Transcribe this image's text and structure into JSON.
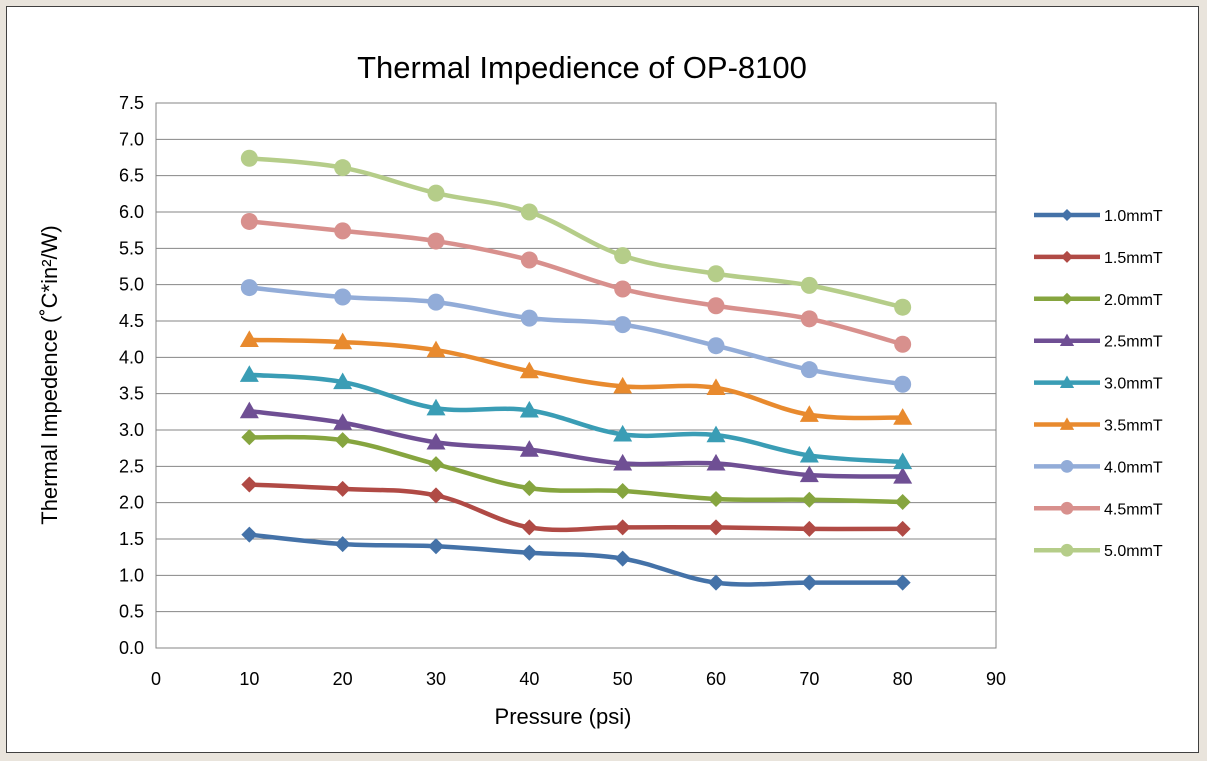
{
  "chart_data": {
    "type": "line",
    "title": "Thermal Impedience of OP-8100",
    "xlabel": "Pressure (psi)",
    "ylabel": "Thermal Impedence (˚C*in²/W)",
    "xlim": [
      0,
      90
    ],
    "ylim": [
      0,
      7.5
    ],
    "x_ticks": [
      "0",
      "10",
      "20",
      "30",
      "40",
      "50",
      "60",
      "70",
      "80",
      "90"
    ],
    "y_ticks": [
      "0.0",
      "0.5",
      "1.0",
      "1.5",
      "2.0",
      "2.5",
      "3.0",
      "3.5",
      "4.0",
      "4.5",
      "5.0",
      "5.5",
      "6.0",
      "6.5",
      "7.0",
      "7.5"
    ],
    "grid": "horizontal",
    "legend": "right",
    "x": [
      10,
      20,
      30,
      40,
      50,
      60,
      70,
      80
    ],
    "series": [
      {
        "name": "1.0mmT",
        "color": "#4472a8",
        "marker": "diamond",
        "values": [
          1.56,
          1.43,
          1.4,
          1.31,
          1.23,
          0.9,
          0.9,
          0.9
        ]
      },
      {
        "name": "1.5mmT",
        "color": "#b04a45",
        "marker": "diamond",
        "values": [
          2.25,
          2.19,
          2.1,
          1.66,
          1.66,
          1.66,
          1.64,
          1.64
        ]
      },
      {
        "name": "2.0mmT",
        "color": "#86a53f",
        "marker": "diamond",
        "values": [
          2.9,
          2.86,
          2.53,
          2.2,
          2.16,
          2.05,
          2.04,
          2.01
        ]
      },
      {
        "name": "2.5mmT",
        "color": "#6f4f94",
        "marker": "triangle",
        "values": [
          3.26,
          3.1,
          2.83,
          2.73,
          2.54,
          2.54,
          2.38,
          2.36
        ]
      },
      {
        "name": "3.0mmT",
        "color": "#3a9db5",
        "marker": "triangle",
        "values": [
          3.76,
          3.66,
          3.3,
          3.27,
          2.94,
          2.93,
          2.65,
          2.56
        ]
      },
      {
        "name": "3.5mmT",
        "color": "#e88a2e",
        "marker": "triangle",
        "values": [
          4.24,
          4.21,
          4.1,
          3.81,
          3.6,
          3.58,
          3.21,
          3.17
        ]
      },
      {
        "name": "4.0mmT",
        "color": "#92acd8",
        "marker": "circle",
        "values": [
          4.96,
          4.83,
          4.76,
          4.54,
          4.45,
          4.16,
          3.83,
          3.63
        ]
      },
      {
        "name": "4.5mmT",
        "color": "#d8908d",
        "marker": "circle",
        "values": [
          5.87,
          5.74,
          5.6,
          5.34,
          4.94,
          4.71,
          4.53,
          4.18
        ]
      },
      {
        "name": "5.0mmT",
        "color": "#b5cd89",
        "marker": "circle",
        "values": [
          6.74,
          6.61,
          6.26,
          6.0,
          5.4,
          5.15,
          4.99,
          4.69
        ]
      }
    ]
  }
}
